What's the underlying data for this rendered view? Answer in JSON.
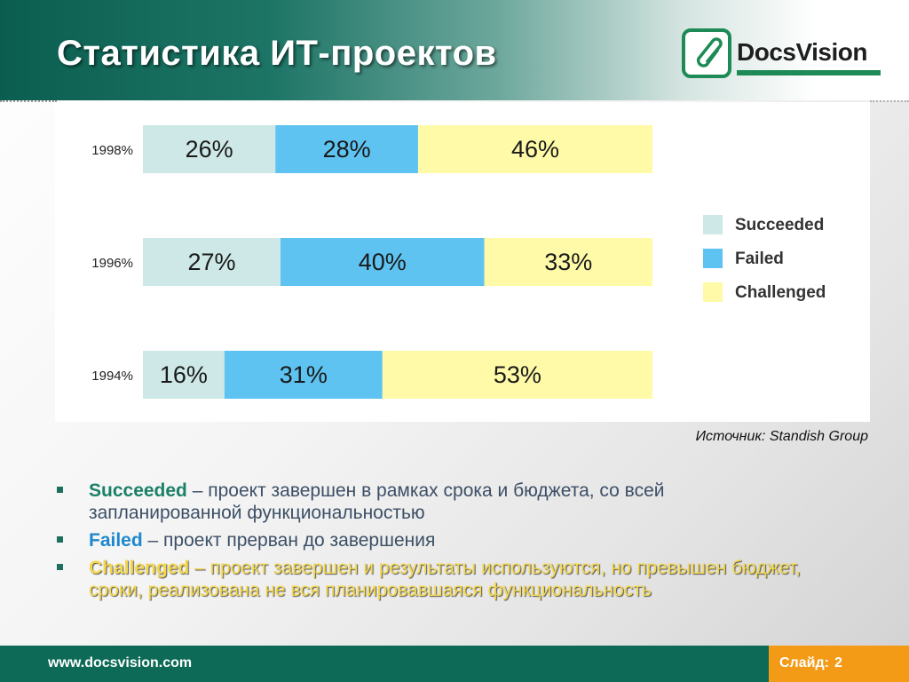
{
  "slide": {
    "title": "Статистика ИТ-проектов",
    "logo_text": "DocsVision",
    "source": "Источник: Standish Group",
    "footer_url": "www.docsvision.com",
    "slide_label": "Слайд:",
    "slide_number": "2"
  },
  "definitions": [
    {
      "term": "Succeeded",
      "text": " – проект завершен в рамках срока и бюджета, со всей запланированной функциональностью"
    },
    {
      "term": "Failed",
      "text": " – проект прерван до завершения"
    },
    {
      "term": "Challenged",
      "text": " – проект завершен и результаты используются, но превышен бюджет, сроки, реализована не вся планировавшаяся функциональность"
    }
  ],
  "colors": {
    "header_dark": "#0b5e4f",
    "footer_green": "#0c6a56",
    "footer_orange": "#f39a16",
    "logo_green": "#1d8a57",
    "succeeded": "#cde8e6",
    "failed": "#5ec3f1",
    "challenged": "#fffaa8"
  },
  "chart_data": {
    "type": "bar",
    "orientation": "horizontal",
    "stacked": true,
    "categories": [
      "1998%",
      "1996%",
      "1994%"
    ],
    "series": [
      {
        "name": "Succeeded",
        "values": [
          26,
          27,
          16
        ],
        "labels": [
          "26%",
          "27%",
          "16%"
        ],
        "color": "#cde8e6"
      },
      {
        "name": "Failed",
        "values": [
          28,
          40,
          31
        ],
        "labels": [
          "28%",
          "40%",
          "31%"
        ],
        "color": "#5ec3f1"
      },
      {
        "name": "Challenged",
        "values": [
          46,
          33,
          53
        ],
        "labels": [
          "46%",
          "33%",
          "53%"
        ],
        "color": "#fffaa8"
      }
    ],
    "xlim": [
      0,
      100
    ],
    "legend": "right",
    "grid": false
  }
}
